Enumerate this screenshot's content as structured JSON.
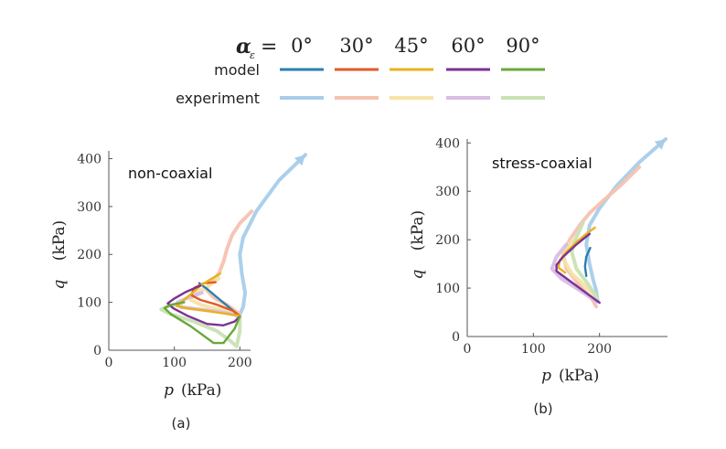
{
  "legend": {
    "alpha_symbol": "α",
    "alpha_subscript": "ε",
    "alpha_equals": "=",
    "angles": [
      "0°",
      "30°",
      "45°",
      "60°",
      "90°"
    ],
    "row_model": "model",
    "row_experiment": "experiment",
    "model_colors": [
      "#2a7fb0",
      "#e05a28",
      "#e9b21c",
      "#7b3294",
      "#6aa83a"
    ],
    "experiment_colors": [
      "#a8cdea",
      "#f5c2b0",
      "#f6e3a6",
      "#d9bde2",
      "#c9e2b4"
    ]
  },
  "chart_data": [
    {
      "type": "line",
      "panel_label": "(a)",
      "annotation": "non-coaxial",
      "xlabel_var": "p",
      "xlabel_unit": "(kPa)",
      "ylabel_var": "q",
      "ylabel_unit": "(kPa)",
      "xlim": [
        0,
        300
      ],
      "ylim": [
        0,
        420
      ],
      "xticks": [
        0,
        100,
        200
      ],
      "yticks": [
        0,
        100,
        200,
        300,
        400
      ],
      "series": [
        {
          "group": "experiment",
          "angle": "0°",
          "points": [
            [
              300,
              408
            ],
            [
              260,
              355
            ],
            [
              225,
              290
            ],
            [
              205,
              235
            ],
            [
              200,
              200
            ],
            [
              203,
              160
            ],
            [
              208,
              120
            ],
            [
              205,
              90
            ],
            [
              200,
              75
            ],
            [
              196,
              70
            ]
          ]
        },
        {
          "group": "experiment",
          "angle": "30°",
          "points": [
            [
              218,
              290
            ],
            [
              200,
              265
            ],
            [
              188,
              240
            ],
            [
              180,
              210
            ],
            [
              175,
              185
            ],
            [
              168,
              160
            ],
            [
              155,
              140
            ],
            [
              148,
              128
            ],
            [
              160,
              110
            ],
            [
              180,
              95
            ],
            [
              200,
              75
            ]
          ]
        },
        {
          "group": "experiment",
          "angle": "45°",
          "points": [
            [
              168,
              150
            ],
            [
              150,
              132
            ],
            [
              130,
              118
            ],
            [
              125,
              105
            ],
            [
              140,
              95
            ],
            [
              160,
              88
            ],
            [
              190,
              80
            ],
            [
              200,
              72
            ]
          ]
        },
        {
          "group": "experiment",
          "angle": "60°",
          "points": [
            [
              142,
              120
            ],
            [
              125,
              112
            ],
            [
              105,
              100
            ],
            [
              110,
              90
            ],
            [
              140,
              85
            ],
            [
              170,
              80
            ],
            [
              200,
              72
            ]
          ]
        },
        {
          "group": "experiment",
          "angle": "90°",
          "points": [
            [
              110,
              96
            ],
            [
              90,
              92
            ],
            [
              80,
              85
            ],
            [
              95,
              75
            ],
            [
              130,
              60
            ],
            [
              165,
              40
            ],
            [
              185,
              20
            ],
            [
              195,
              8
            ],
            [
              200,
              40
            ],
            [
              200,
              70
            ]
          ]
        },
        {
          "group": "model",
          "angle": "0°",
          "points": [
            [
              200,
              70
            ],
            [
              190,
              82
            ],
            [
              170,
              105
            ],
            [
              150,
              128
            ],
            [
              138,
              140
            ]
          ]
        },
        {
          "group": "model",
          "angle": "30°",
          "points": [
            [
              163,
              142
            ],
            [
              145,
              140
            ],
            [
              130,
              130
            ],
            [
              126,
              115
            ],
            [
              140,
              105
            ],
            [
              165,
              95
            ],
            [
              190,
              82
            ],
            [
              200,
              72
            ]
          ]
        },
        {
          "group": "model",
          "angle": "45°",
          "points": [
            [
              170,
              160
            ],
            [
              155,
              148
            ],
            [
              140,
              135
            ],
            [
              128,
              120
            ],
            [
              110,
              100
            ],
            [
              104,
              92
            ],
            [
              118,
              88
            ],
            [
              150,
              82
            ],
            [
              180,
              76
            ],
            [
              200,
              72
            ]
          ]
        },
        {
          "group": "model",
          "angle": "60°",
          "points": [
            [
              140,
              135
            ],
            [
              118,
              122
            ],
            [
              100,
              108
            ],
            [
              90,
              98
            ],
            [
              98,
              88
            ],
            [
              120,
              72
            ],
            [
              150,
              55
            ],
            [
              175,
              52
            ],
            [
              192,
              60
            ],
            [
              200,
              70
            ]
          ]
        },
        {
          "group": "model",
          "angle": "90°",
          "points": [
            [
              115,
              100
            ],
            [
              95,
              95
            ],
            [
              85,
              88
            ],
            [
              95,
              75
            ],
            [
              125,
              50
            ],
            [
              160,
              15
            ],
            [
              175,
              15
            ],
            [
              192,
              45
            ],
            [
              200,
              70
            ]
          ]
        }
      ]
    },
    {
      "type": "line",
      "panel_label": "(b)",
      "annotation": "stress-coaxial",
      "xlabel_var": "p",
      "xlabel_unit": "(kPa)",
      "ylabel_var": "q",
      "ylabel_unit": "(kPa)",
      "xlim": [
        0,
        300
      ],
      "ylim": [
        0,
        410
      ],
      "xticks": [
        0,
        100,
        200
      ],
      "yticks": [
        0,
        100,
        200,
        300,
        400
      ],
      "series": [
        {
          "group": "experiment",
          "angle": "0°",
          "points": [
            [
              300,
              408
            ],
            [
              260,
              360
            ],
            [
              225,
              310
            ],
            [
              200,
              265
            ],
            [
              185,
              230
            ],
            [
              180,
              190
            ],
            [
              185,
              150
            ],
            [
              190,
              120
            ],
            [
              195,
              95
            ],
            [
              197,
              75
            ]
          ]
        },
        {
          "group": "experiment",
          "angle": "30°",
          "points": [
            [
              260,
              350
            ],
            [
              230,
              310
            ],
            [
              205,
              280
            ],
            [
              185,
              255
            ],
            [
              170,
              230
            ],
            [
              155,
              200
            ],
            [
              145,
              170
            ],
            [
              150,
              140
            ],
            [
              170,
              105
            ],
            [
              190,
              75
            ],
            [
              195,
              62
            ]
          ]
        },
        {
          "group": "experiment",
          "angle": "45°",
          "points": [
            [
              160,
              200
            ],
            [
              148,
              180
            ],
            [
              145,
              160
            ],
            [
              158,
              130
            ],
            [
              178,
              105
            ],
            [
              195,
              80
            ]
          ]
        },
        {
          "group": "experiment",
          "angle": "60°",
          "points": [
            [
              150,
              190
            ],
            [
              135,
              165
            ],
            [
              128,
              140
            ],
            [
              142,
              120
            ],
            [
              165,
              100
            ],
            [
              185,
              82
            ],
            [
              196,
              72
            ]
          ]
        },
        {
          "group": "experiment",
          "angle": "90°",
          "points": [
            [
              175,
              235
            ],
            [
              165,
              205
            ],
            [
              158,
              175
            ],
            [
              165,
              140
            ],
            [
              182,
              110
            ],
            [
              196,
              80
            ]
          ]
        },
        {
          "group": "model",
          "angle": "0°",
          "points": [
            [
              186,
              183
            ],
            [
              180,
              165
            ],
            [
              178,
              145
            ],
            [
              180,
              125
            ]
          ]
        },
        {
          "group": "model",
          "angle": "45°",
          "points": [
            [
              193,
              225
            ],
            [
              180,
              212
            ],
            [
              165,
              195
            ],
            [
              150,
              175
            ],
            [
              140,
              158
            ],
            [
              138,
              142
            ],
            [
              148,
              132
            ]
          ]
        },
        {
          "group": "model",
          "angle": "60°",
          "points": [
            [
              185,
              212
            ],
            [
              165,
              190
            ],
            [
              145,
              165
            ],
            [
              135,
              148
            ],
            [
              135,
              135
            ],
            [
              150,
              120
            ],
            [
              170,
              100
            ],
            [
              190,
              80
            ],
            [
              200,
              70
            ]
          ]
        }
      ]
    }
  ]
}
